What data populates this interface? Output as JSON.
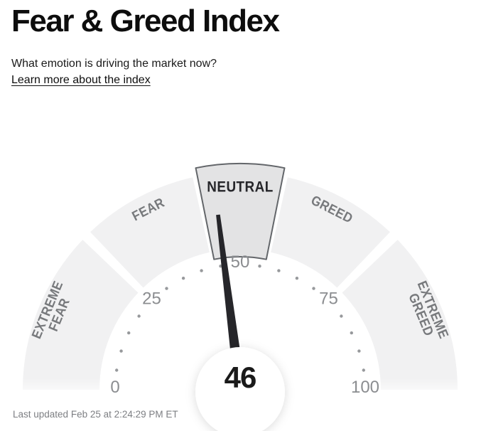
{
  "header": {
    "title": "Fear & Greed Index",
    "subtitle": "What emotion is driving the market now?",
    "link_label": "Learn more about the index"
  },
  "footer": {
    "last_updated": "Last updated Feb 25 at 2:24:29 PM ET"
  },
  "chart_data": {
    "type": "gauge",
    "value": 46,
    "value_label": "46",
    "min": 0,
    "max": 100,
    "tick_labels": [
      0,
      25,
      50,
      75,
      100
    ],
    "dot_tick_step": 5,
    "segments": [
      {
        "label": "EXTREME FEAR",
        "lines": [
          "EXTREME",
          "FEAR"
        ],
        "from": 0,
        "to": 25,
        "active": false
      },
      {
        "label": "FEAR",
        "lines": [
          "FEAR"
        ],
        "from": 25,
        "to": 45,
        "active": false
      },
      {
        "label": "NEUTRAL",
        "lines": [
          "NEUTRAL"
        ],
        "from": 45,
        "to": 55,
        "active": true
      },
      {
        "label": "GREED",
        "lines": [
          "GREED"
        ],
        "from": 55,
        "to": 75,
        "active": false
      },
      {
        "label": "EXTREME GREED",
        "lines": [
          "EXTREME",
          "GREED"
        ],
        "from": 75,
        "to": 100,
        "active": false
      }
    ],
    "colors": {
      "segment_fill": "#f1f1f2",
      "active_fill": "#e3e3e4",
      "active_stroke": "#63666a",
      "needle": "#26262a",
      "dot": "#97999c",
      "tick_label": "#8b8d90",
      "segment_label": "#77797c",
      "active_label": "#26262a",
      "value": "#1a1a1a"
    },
    "layout_hints": {
      "orientation": "semicircle-180",
      "needle_origin": "bottom-center",
      "active_segment_enlarged": true
    }
  }
}
